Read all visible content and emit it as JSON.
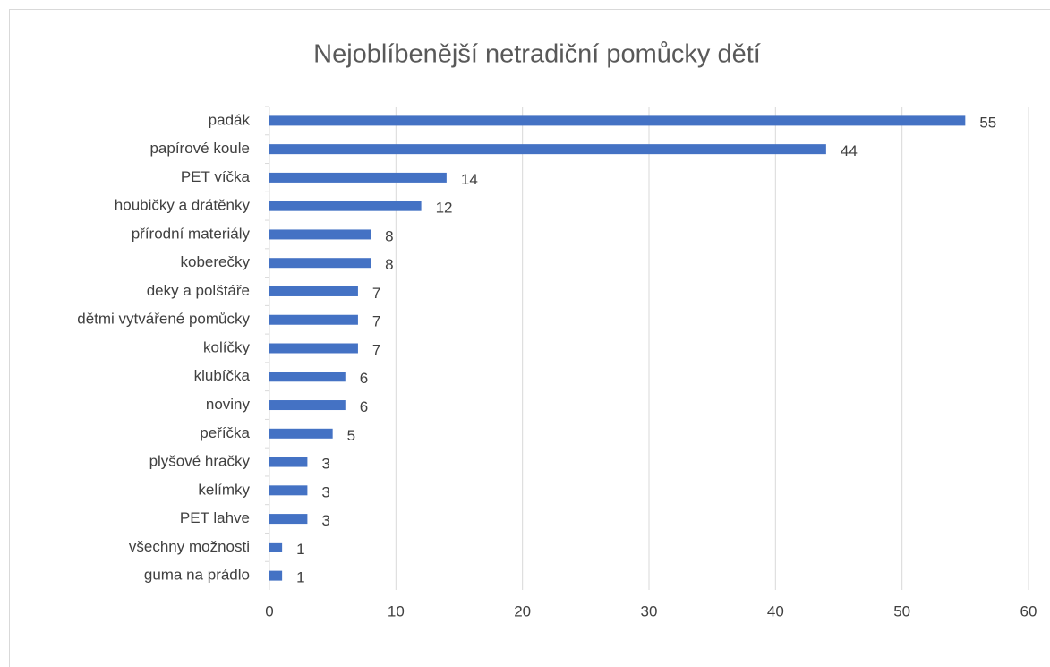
{
  "chart_data": {
    "type": "bar",
    "orientation": "horizontal",
    "title": "Nejoblíbenější netradiční pomůcky dětí",
    "categories": [
      "padák",
      "papírové koule",
      "PET víčka",
      "houbičky a drátěnky",
      "přírodní materiály",
      "koberečky",
      "deky a polštáře",
      "dětmi vytvářené pomůcky",
      "kolíčky",
      "klubíčka",
      "noviny",
      "peříčka",
      "plyšové hračky",
      "kelímky",
      "PET lahve",
      "všechny možnosti",
      "guma na prádlo"
    ],
    "values": [
      55,
      44,
      14,
      12,
      8,
      8,
      7,
      7,
      7,
      6,
      6,
      5,
      3,
      3,
      3,
      1,
      1
    ],
    "color": "#4472c4",
    "xlim": [
      0,
      60
    ],
    "xticks": [
      0,
      10,
      20,
      30,
      40,
      50,
      60
    ],
    "grid": true
  }
}
